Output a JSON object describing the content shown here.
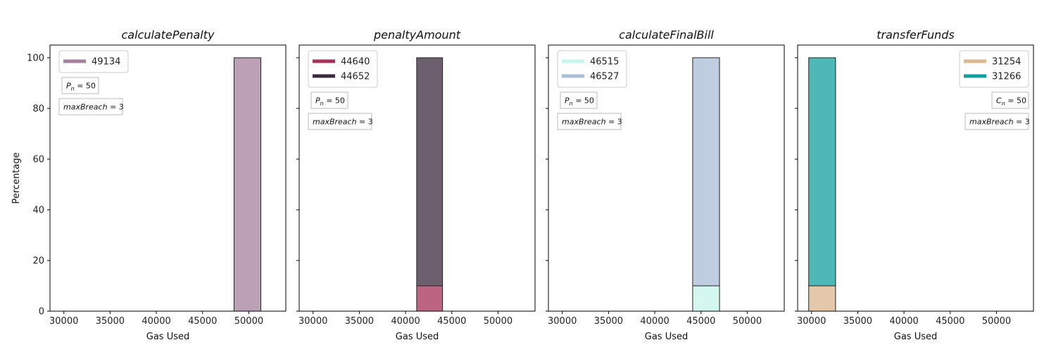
{
  "chart_data": [
    {
      "type": "bar",
      "title": "calculatePenalty",
      "xlabel": "Gas Used",
      "ylabel": "Percentage",
      "xlim": [
        28500,
        54000
      ],
      "ylim": [
        0,
        105
      ],
      "xticks": [
        "30000",
        "35000",
        "40000",
        "45000",
        "50000"
      ],
      "yticks": [
        "0",
        "20",
        "40",
        "60",
        "80",
        "100"
      ],
      "legend_position": "top-left",
      "series": [
        {
          "name": "49134",
          "color": "#a5809c",
          "bars": [
            {
              "x0": 48400,
              "x1": 51300,
              "value": 100
            }
          ]
        }
      ],
      "annotations": [
        {
          "prefix": "P",
          "sub": "n",
          "text": " = 50"
        },
        {
          "prefix": "maxBreach",
          "sub": "",
          "text": " = 3"
        }
      ]
    },
    {
      "type": "bar",
      "title": "penaltyAmount",
      "xlabel": "Gas Used",
      "ylabel": "",
      "xlim": [
        28500,
        54000
      ],
      "ylim": [
        0,
        105
      ],
      "xticks": [
        "30000",
        "35000",
        "40000",
        "45000",
        "50000"
      ],
      "yticks": [],
      "legend_position": "top-left",
      "series": [
        {
          "name": "44640",
          "color": "#a4325a",
          "bars": [
            {
              "x0": 41200,
              "x1": 44000,
              "value": 10
            }
          ]
        },
        {
          "name": "44652",
          "color": "#3e2a3f",
          "bars": [
            {
              "x0": 41200,
              "x1": 44000,
              "value": 90
            }
          ]
        }
      ],
      "annotations": [
        {
          "prefix": "P",
          "sub": "n",
          "text": " = 50"
        },
        {
          "prefix": "maxBreach",
          "sub": "",
          "text": " = 3"
        }
      ]
    },
    {
      "type": "bar",
      "title": "calculateFinalBill",
      "xlabel": "Gas Used",
      "ylabel": "",
      "xlim": [
        28500,
        54000
      ],
      "ylim": [
        0,
        105
      ],
      "xticks": [
        "30000",
        "35000",
        "40000",
        "45000",
        "50000"
      ],
      "yticks": [],
      "legend_position": "top-left",
      "series": [
        {
          "name": "46515",
          "color": "#c6f5ea",
          "bars": [
            {
              "x0": 44100,
              "x1": 47000,
              "value": 10
            }
          ]
        },
        {
          "name": "46527",
          "color": "#a8bed5",
          "bars": [
            {
              "x0": 44100,
              "x1": 47000,
              "value": 90
            }
          ]
        }
      ],
      "annotations": [
        {
          "prefix": "P",
          "sub": "n",
          "text": " = 50"
        },
        {
          "prefix": "maxBreach",
          "sub": "",
          "text": " = 3"
        }
      ]
    },
    {
      "type": "bar",
      "title": "transferFunds",
      "xlabel": "Gas Used",
      "ylabel": "",
      "xlim": [
        28500,
        54000
      ],
      "ylim": [
        0,
        105
      ],
      "xticks": [
        "30000",
        "35000",
        "40000",
        "45000",
        "50000"
      ],
      "yticks": [],
      "legend_position": "top-right",
      "series": [
        {
          "name": "31254",
          "color": "#dcb68e",
          "bars": [
            {
              "x0": 29700,
              "x1": 32600,
              "value": 10
            }
          ]
        },
        {
          "name": "31266",
          "color": "#139fa0",
          "bars": [
            {
              "x0": 29700,
              "x1": 32600,
              "value": 90
            }
          ]
        }
      ],
      "annotations": [
        {
          "prefix": "C",
          "sub": "n",
          "text": " = 50"
        },
        {
          "prefix": "maxBreach",
          "sub": "",
          "text": " = 3"
        }
      ]
    }
  ]
}
